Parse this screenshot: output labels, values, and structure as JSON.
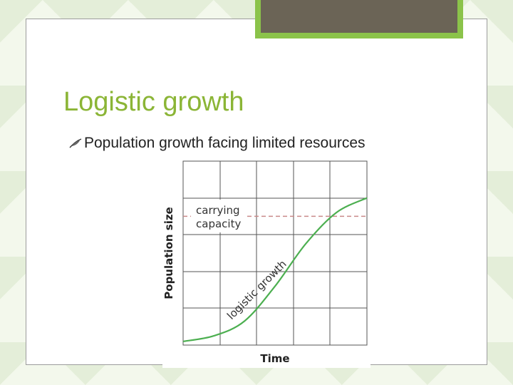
{
  "slide": {
    "title": "Logistic growth",
    "bullet": {
      "icon": "feather-bullet-icon",
      "text": "Population growth facing limited resources"
    }
  },
  "colors": {
    "title": "#8bb536",
    "accent": "#8bc34a",
    "tab": "#6b6456",
    "curve": "#4caf50",
    "capacity_line": "#c98a8a"
  },
  "chart_data": {
    "type": "line",
    "xlabel": "Time",
    "ylabel": "Population size",
    "grid": true,
    "annotations": [
      "carrying",
      "capacity",
      "logistic growth"
    ],
    "series": [
      {
        "values": [
          0.02,
          0.05,
          0.13,
          0.32,
          0.55,
          0.72,
          0.8
        ]
      },
      {
        "values": [
          0.7,
          0.7
        ]
      }
    ]
  }
}
